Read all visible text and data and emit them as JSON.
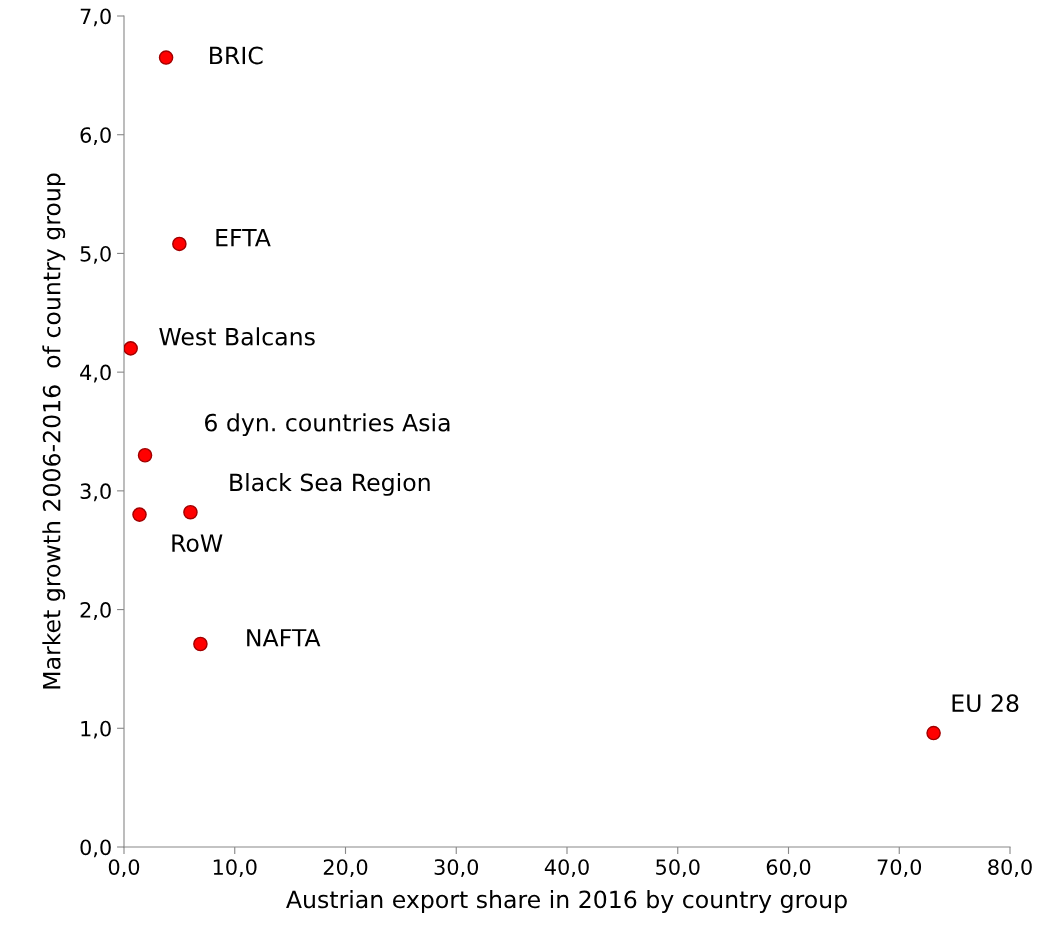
{
  "chart_data": {
    "type": "scatter",
    "xlabel": "Austrian export share in 2016 by country group",
    "ylabel": "Market growth 2006-2016  of country group",
    "x": [
      3.8,
      5.0,
      0.6,
      1.9,
      6.0,
      1.4,
      6.9,
      73.1
    ],
    "series": [
      {
        "color": "#ff0000",
        "values": [
          6.65,
          5.08,
          4.2,
          3.3,
          2.82,
          2.8,
          1.71,
          0.96
        ]
      }
    ],
    "marker": "circle",
    "grid": false,
    "legend": false,
    "xlim": [
      0,
      80
    ],
    "ylim": [
      0,
      7
    ],
    "xticks": [
      {
        "value": 0,
        "label": "0,0"
      },
      {
        "value": 10,
        "label": "10,0"
      },
      {
        "value": 20,
        "label": "20,0"
      },
      {
        "value": 30,
        "label": "30,0"
      },
      {
        "value": 40,
        "label": "40,0"
      },
      {
        "value": 50,
        "label": "50,0"
      },
      {
        "value": 60,
        "label": "60,0"
      },
      {
        "value": 70,
        "label": "70,0"
      },
      {
        "value": 80,
        "label": "80,0"
      }
    ],
    "yticks": [
      {
        "value": 0,
        "label": "0,0"
      },
      {
        "value": 1,
        "label": "1,0"
      },
      {
        "value": 2,
        "label": "2,0"
      },
      {
        "value": 3,
        "label": "3,0"
      },
      {
        "value": 4,
        "label": "4,0"
      },
      {
        "value": 5,
        "label": "5,0"
      },
      {
        "value": 6,
        "label": "6,0"
      },
      {
        "value": 7,
        "label": "7,0"
      }
    ],
    "annotations": [
      {
        "text": "BRIC",
        "x": 3.8,
        "y": 6.65
      },
      {
        "text": "EFTA",
        "x": 5.0,
        "y": 5.08
      },
      {
        "text": "West Balcans",
        "x": 0.6,
        "y": 4.2
      },
      {
        "text": "6 dyn. countries Asia",
        "x": 1.9,
        "y": 3.3
      },
      {
        "text": "Black Sea Region",
        "x": 6.0,
        "y": 2.82
      },
      {
        "text": "RoW",
        "x": 1.4,
        "y": 2.8
      },
      {
        "text": "NAFTA",
        "x": 6.9,
        "y": 1.71
      },
      {
        "text": "EU 28",
        "x": 73.1,
        "y": 0.96
      }
    ]
  }
}
